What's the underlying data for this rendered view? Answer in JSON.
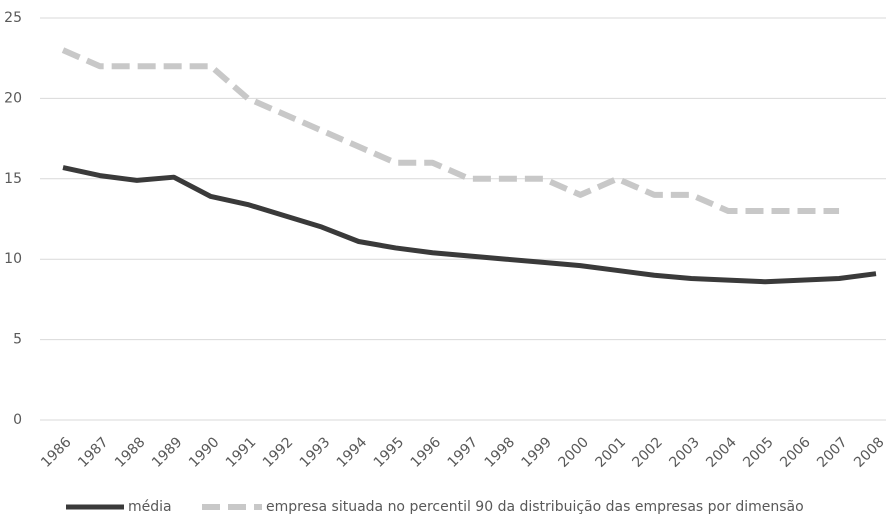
{
  "chart_data": {
    "type": "line",
    "categories": [
      "1986",
      "1987",
      "1988",
      "1989",
      "1990",
      "1991",
      "1992",
      "1993",
      "1994",
      "1995",
      "1996",
      "1997",
      "1998",
      "1999",
      "2000",
      "2001",
      "2002",
      "2003",
      "2004",
      "2005",
      "2006",
      "2007",
      "2008"
    ],
    "series": [
      {
        "name": "média",
        "color": "#3a3a3a",
        "dashed": false,
        "values": [
          15.7,
          15.2,
          14.9,
          15.1,
          13.9,
          13.4,
          12.7,
          12.0,
          11.1,
          10.7,
          10.4,
          10.2,
          10.0,
          9.8,
          9.6,
          9.3,
          9.0,
          8.8,
          8.7,
          8.6,
          8.7,
          8.8,
          9.1
        ]
      },
      {
        "name": "empresa situada no percentil 90 da distribuição das empresas por dimensão",
        "color": "#c8c8c8",
        "dashed": true,
        "values": [
          23,
          22,
          22,
          22,
          22,
          20,
          19,
          18,
          17,
          16,
          16,
          15,
          15,
          15,
          14,
          15,
          14,
          14,
          13,
          13,
          13,
          13,
          null
        ]
      }
    ],
    "ylim": [
      0,
      25
    ],
    "yticks": [
      0,
      5,
      10,
      15,
      20,
      25
    ],
    "grid": true
  }
}
